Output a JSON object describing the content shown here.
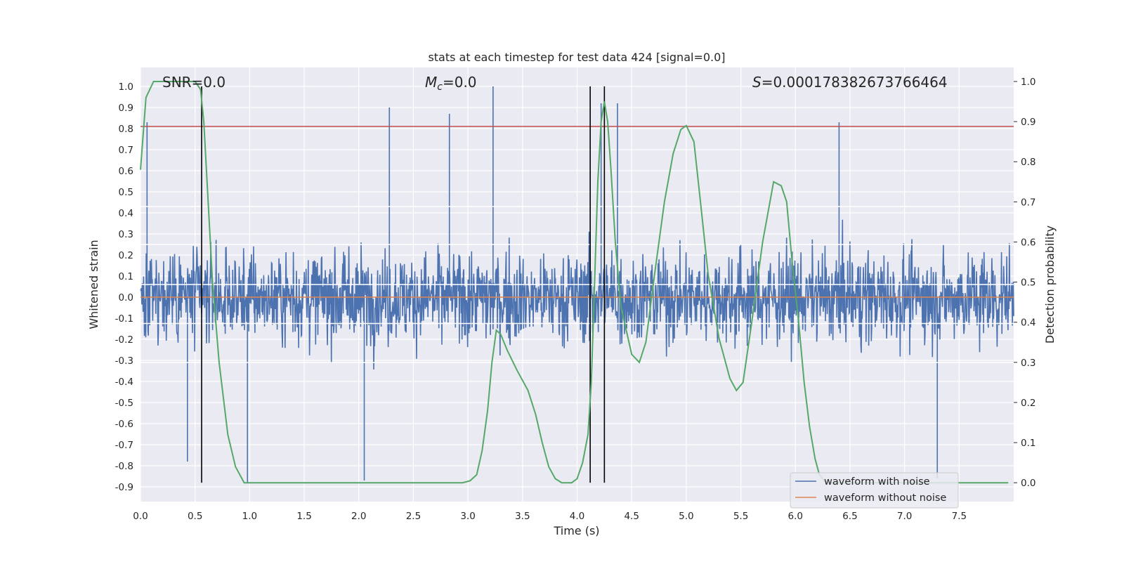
{
  "chart_data": {
    "type": "line",
    "title": "stats at each timestep for test data 424 [signal=0.0]",
    "xlabel": "Time (s)",
    "ylabel_left": "Whitened strain",
    "ylabel_right": "Detection probability",
    "xlim": [
      0.0,
      8.0
    ],
    "ylim_left": [
      -0.97,
      1.09
    ],
    "ylim_right": [
      -0.047,
      1.035
    ],
    "x_ticks": [
      "0.0",
      "0.5",
      "1.0",
      "1.5",
      "2.0",
      "2.5",
      "3.0",
      "3.5",
      "4.0",
      "4.5",
      "5.0",
      "5.5",
      "6.0",
      "6.5",
      "7.0",
      "7.5"
    ],
    "y_ticks_left": [
      "1.0",
      "0.9",
      "0.8",
      "0.7",
      "0.6",
      "0.5",
      "0.4",
      "0.3",
      "0.2",
      "0.1",
      "0.0",
      "-0.1",
      "-0.2",
      "-0.3",
      "-0.4",
      "-0.5",
      "-0.6",
      "-0.7",
      "-0.8",
      "-0.9"
    ],
    "y_ticks_right": [
      "1.0",
      "0.9",
      "0.8",
      "0.7",
      "0.6",
      "0.5",
      "0.4",
      "0.3",
      "0.2",
      "0.1",
      "0.0"
    ],
    "grid": true,
    "annotations": {
      "snr": "SNR=0.0",
      "mc_symbol": "M",
      "mc_sub": "c",
      "mc_value": "=0.0",
      "s_symbol": "S",
      "s_value": "=0.000178382673766464"
    },
    "threshold_left": 0.81,
    "white_lines_left": [
      0.43,
      0.25,
      0.06,
      -0.125,
      -0.31
    ],
    "vertical_lines_x": [
      0.56,
      4.12,
      4.25
    ],
    "series": [
      {
        "name": "waveform with noise",
        "color": "#4c72b0",
        "kind": "noise",
        "n_points": 2000,
        "typical_amplitude": 0.4,
        "spikes": [
          [
            0.06,
            0.83
          ],
          [
            2.28,
            0.9
          ],
          [
            2.83,
            0.87
          ],
          [
            3.23,
            1.0
          ],
          [
            4.22,
            0.92
          ],
          [
            4.37,
            0.92
          ],
          [
            6.4,
            0.83
          ],
          [
            0.43,
            -0.78
          ],
          [
            0.98,
            -0.88
          ],
          [
            2.05,
            -0.87
          ],
          [
            7.3,
            -0.86
          ]
        ]
      },
      {
        "name": "waveform without noise",
        "color": "#dd8452",
        "kind": "constant",
        "value": 0.0
      },
      {
        "name": "detection probability",
        "color": "#55a868",
        "axis": "right",
        "x": [
          0.0,
          0.05,
          0.12,
          0.2,
          0.3,
          0.45,
          0.5,
          0.55,
          0.58,
          0.62,
          0.66,
          0.72,
          0.8,
          0.87,
          0.95,
          1.2,
          1.6,
          2.0,
          2.4,
          2.8,
          2.95,
          3.02,
          3.08,
          3.13,
          3.18,
          3.22,
          3.26,
          3.3,
          3.36,
          3.45,
          3.55,
          3.62,
          3.68,
          3.74,
          3.8,
          3.86,
          3.95,
          4.0,
          4.05,
          4.1,
          4.13,
          4.16,
          4.19,
          4.22,
          4.25,
          4.28,
          4.31,
          4.35,
          4.4,
          4.5,
          4.57,
          4.63,
          4.7,
          4.8,
          4.88,
          4.95,
          5.0,
          5.07,
          5.13,
          5.2,
          5.3,
          5.4,
          5.46,
          5.52,
          5.6,
          5.7,
          5.8,
          5.87,
          5.92,
          5.97,
          6.03,
          6.08,
          6.13,
          6.18,
          6.22,
          6.28,
          6.35,
          6.45,
          7.0,
          7.5,
          7.95
        ],
        "y": [
          0.78,
          0.96,
          1.0,
          1.0,
          1.0,
          1.0,
          1.0,
          0.98,
          0.9,
          0.7,
          0.5,
          0.3,
          0.12,
          0.04,
          0.0,
          0.0,
          0.0,
          0.0,
          0.0,
          0.0,
          0.0,
          0.005,
          0.02,
          0.08,
          0.18,
          0.3,
          0.38,
          0.37,
          0.33,
          0.28,
          0.23,
          0.17,
          0.1,
          0.04,
          0.01,
          0.0,
          0.0,
          0.01,
          0.05,
          0.12,
          0.25,
          0.5,
          0.75,
          0.9,
          0.95,
          0.9,
          0.78,
          0.6,
          0.44,
          0.32,
          0.3,
          0.35,
          0.5,
          0.7,
          0.82,
          0.88,
          0.89,
          0.85,
          0.7,
          0.52,
          0.36,
          0.26,
          0.23,
          0.25,
          0.4,
          0.6,
          0.75,
          0.74,
          0.7,
          0.55,
          0.4,
          0.25,
          0.14,
          0.06,
          0.02,
          0.0,
          0.0,
          0.0,
          0.0,
          0.0,
          0.0
        ]
      },
      {
        "name": "threshold",
        "color": "#c44e52",
        "kind": "hline"
      }
    ],
    "legend": {
      "position": "lower-right",
      "entries": [
        {
          "label": "waveform with noise",
          "color": "#4c72b0"
        },
        {
          "label": "waveform without noise",
          "color": "#dd8452"
        }
      ]
    },
    "colors": {
      "plot_bg": "#eaeaf2",
      "grid": "#ffffff",
      "vline": "#000000"
    }
  }
}
